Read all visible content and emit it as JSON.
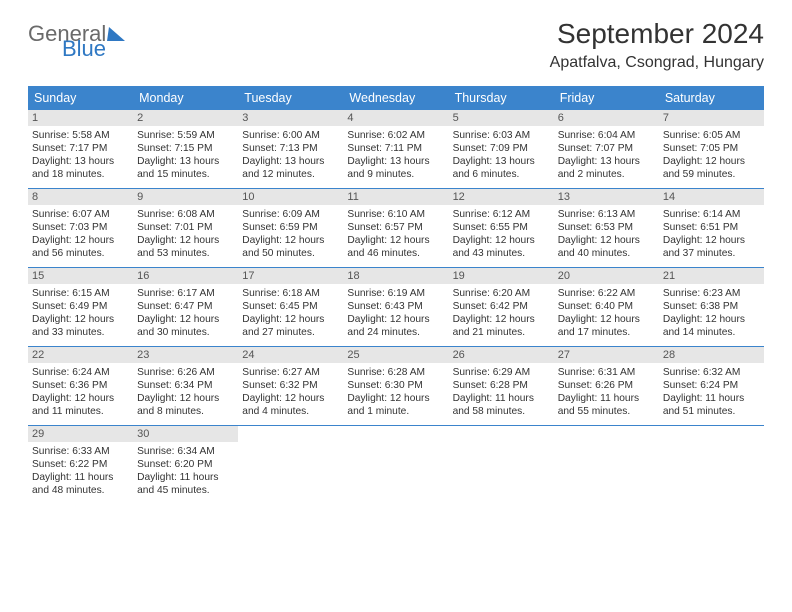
{
  "logo": {
    "word1": "General",
    "word2": "Blue"
  },
  "header": {
    "month_title": "September 2024",
    "location": "Apatfalva, Csongrad, Hungary"
  },
  "colors": {
    "header_bg": "#3b84cc",
    "header_text": "#ffffff",
    "daynum_bg": "#e6e6e6",
    "daynum_text": "#555555",
    "text": "#333333",
    "logo_gray": "#6a6a6a",
    "logo_blue": "#2f78c3",
    "week_divider": "#3b84cc"
  },
  "typography": {
    "month_title_fontsize": 28,
    "location_fontsize": 16,
    "dayheader_fontsize": 12.5,
    "daynum_fontsize": 11,
    "body_fontsize": 10.2
  },
  "layout": {
    "type": "calendar",
    "columns": 7,
    "rows": 5
  },
  "day_names": [
    "Sunday",
    "Monday",
    "Tuesday",
    "Wednesday",
    "Thursday",
    "Friday",
    "Saturday"
  ],
  "days": [
    {
      "n": "1",
      "sunrise": "Sunrise: 5:58 AM",
      "sunset": "Sunset: 7:17 PM",
      "daylight": "Daylight: 13 hours and 18 minutes."
    },
    {
      "n": "2",
      "sunrise": "Sunrise: 5:59 AM",
      "sunset": "Sunset: 7:15 PM",
      "daylight": "Daylight: 13 hours and 15 minutes."
    },
    {
      "n": "3",
      "sunrise": "Sunrise: 6:00 AM",
      "sunset": "Sunset: 7:13 PM",
      "daylight": "Daylight: 13 hours and 12 minutes."
    },
    {
      "n": "4",
      "sunrise": "Sunrise: 6:02 AM",
      "sunset": "Sunset: 7:11 PM",
      "daylight": "Daylight: 13 hours and 9 minutes."
    },
    {
      "n": "5",
      "sunrise": "Sunrise: 6:03 AM",
      "sunset": "Sunset: 7:09 PM",
      "daylight": "Daylight: 13 hours and 6 minutes."
    },
    {
      "n": "6",
      "sunrise": "Sunrise: 6:04 AM",
      "sunset": "Sunset: 7:07 PM",
      "daylight": "Daylight: 13 hours and 2 minutes."
    },
    {
      "n": "7",
      "sunrise": "Sunrise: 6:05 AM",
      "sunset": "Sunset: 7:05 PM",
      "daylight": "Daylight: 12 hours and 59 minutes."
    },
    {
      "n": "8",
      "sunrise": "Sunrise: 6:07 AM",
      "sunset": "Sunset: 7:03 PM",
      "daylight": "Daylight: 12 hours and 56 minutes."
    },
    {
      "n": "9",
      "sunrise": "Sunrise: 6:08 AM",
      "sunset": "Sunset: 7:01 PM",
      "daylight": "Daylight: 12 hours and 53 minutes."
    },
    {
      "n": "10",
      "sunrise": "Sunrise: 6:09 AM",
      "sunset": "Sunset: 6:59 PM",
      "daylight": "Daylight: 12 hours and 50 minutes."
    },
    {
      "n": "11",
      "sunrise": "Sunrise: 6:10 AM",
      "sunset": "Sunset: 6:57 PM",
      "daylight": "Daylight: 12 hours and 46 minutes."
    },
    {
      "n": "12",
      "sunrise": "Sunrise: 6:12 AM",
      "sunset": "Sunset: 6:55 PM",
      "daylight": "Daylight: 12 hours and 43 minutes."
    },
    {
      "n": "13",
      "sunrise": "Sunrise: 6:13 AM",
      "sunset": "Sunset: 6:53 PM",
      "daylight": "Daylight: 12 hours and 40 minutes."
    },
    {
      "n": "14",
      "sunrise": "Sunrise: 6:14 AM",
      "sunset": "Sunset: 6:51 PM",
      "daylight": "Daylight: 12 hours and 37 minutes."
    },
    {
      "n": "15",
      "sunrise": "Sunrise: 6:15 AM",
      "sunset": "Sunset: 6:49 PM",
      "daylight": "Daylight: 12 hours and 33 minutes."
    },
    {
      "n": "16",
      "sunrise": "Sunrise: 6:17 AM",
      "sunset": "Sunset: 6:47 PM",
      "daylight": "Daylight: 12 hours and 30 minutes."
    },
    {
      "n": "17",
      "sunrise": "Sunrise: 6:18 AM",
      "sunset": "Sunset: 6:45 PM",
      "daylight": "Daylight: 12 hours and 27 minutes."
    },
    {
      "n": "18",
      "sunrise": "Sunrise: 6:19 AM",
      "sunset": "Sunset: 6:43 PM",
      "daylight": "Daylight: 12 hours and 24 minutes."
    },
    {
      "n": "19",
      "sunrise": "Sunrise: 6:20 AM",
      "sunset": "Sunset: 6:42 PM",
      "daylight": "Daylight: 12 hours and 21 minutes."
    },
    {
      "n": "20",
      "sunrise": "Sunrise: 6:22 AM",
      "sunset": "Sunset: 6:40 PM",
      "daylight": "Daylight: 12 hours and 17 minutes."
    },
    {
      "n": "21",
      "sunrise": "Sunrise: 6:23 AM",
      "sunset": "Sunset: 6:38 PM",
      "daylight": "Daylight: 12 hours and 14 minutes."
    },
    {
      "n": "22",
      "sunrise": "Sunrise: 6:24 AM",
      "sunset": "Sunset: 6:36 PM",
      "daylight": "Daylight: 12 hours and 11 minutes."
    },
    {
      "n": "23",
      "sunrise": "Sunrise: 6:26 AM",
      "sunset": "Sunset: 6:34 PM",
      "daylight": "Daylight: 12 hours and 8 minutes."
    },
    {
      "n": "24",
      "sunrise": "Sunrise: 6:27 AM",
      "sunset": "Sunset: 6:32 PM",
      "daylight": "Daylight: 12 hours and 4 minutes."
    },
    {
      "n": "25",
      "sunrise": "Sunrise: 6:28 AM",
      "sunset": "Sunset: 6:30 PM",
      "daylight": "Daylight: 12 hours and 1 minute."
    },
    {
      "n": "26",
      "sunrise": "Sunrise: 6:29 AM",
      "sunset": "Sunset: 6:28 PM",
      "daylight": "Daylight: 11 hours and 58 minutes."
    },
    {
      "n": "27",
      "sunrise": "Sunrise: 6:31 AM",
      "sunset": "Sunset: 6:26 PM",
      "daylight": "Daylight: 11 hours and 55 minutes."
    },
    {
      "n": "28",
      "sunrise": "Sunrise: 6:32 AM",
      "sunset": "Sunset: 6:24 PM",
      "daylight": "Daylight: 11 hours and 51 minutes."
    },
    {
      "n": "29",
      "sunrise": "Sunrise: 6:33 AM",
      "sunset": "Sunset: 6:22 PM",
      "daylight": "Daylight: 11 hours and 48 minutes."
    },
    {
      "n": "30",
      "sunrise": "Sunrise: 6:34 AM",
      "sunset": "Sunset: 6:20 PM",
      "daylight": "Daylight: 11 hours and 45 minutes."
    }
  ]
}
